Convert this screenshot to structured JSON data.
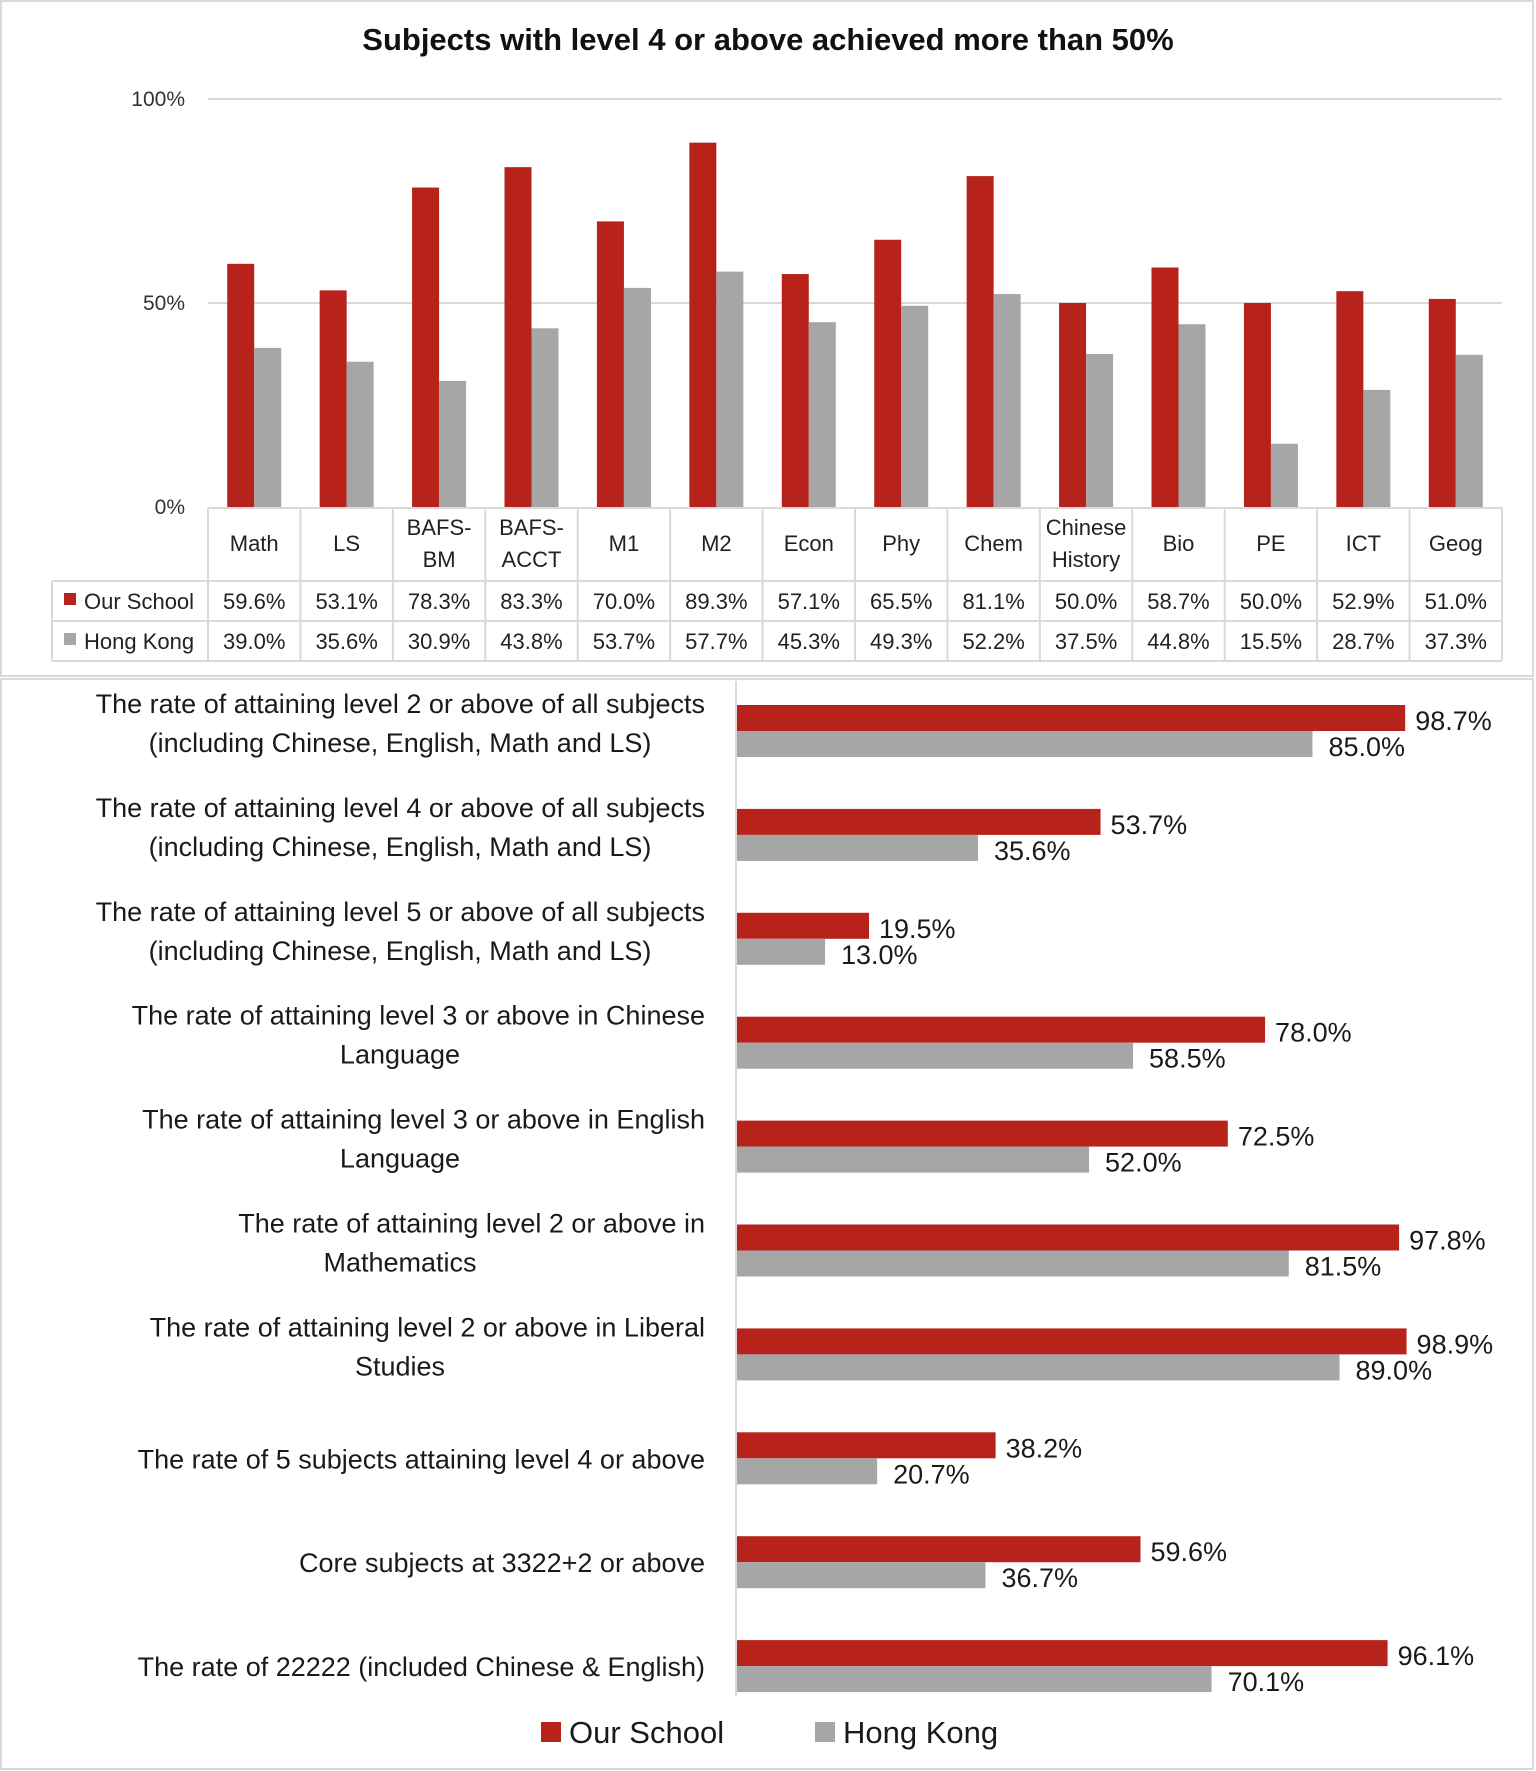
{
  "colors": {
    "our_school": "#B7231B",
    "hong_kong": "#A6A6A6",
    "grid": "#D9D9D9",
    "table_border": "#D9D9D9"
  },
  "chart_data": [
    {
      "type": "bar",
      "title": "Subjects with level 4 or above achieved more than 50%",
      "categories": [
        [
          "Math"
        ],
        [
          "LS"
        ],
        [
          "BAFS-",
          "BM"
        ],
        [
          "BAFS-",
          "ACCT"
        ],
        [
          "M1"
        ],
        [
          "M2"
        ],
        [
          "Econ"
        ],
        [
          "Phy"
        ],
        [
          "Chem"
        ],
        [
          "Chinese",
          "History"
        ],
        [
          "Bio"
        ],
        [
          "PE"
        ],
        [
          "ICT"
        ],
        [
          "Geog"
        ]
      ],
      "series": [
        {
          "name": "Our School",
          "values": [
            59.6,
            53.1,
            78.3,
            83.3,
            70.0,
            89.3,
            57.1,
            65.5,
            81.1,
            50.0,
            58.7,
            50.0,
            52.9,
            51.0
          ],
          "labels": [
            "59.6%",
            "53.1%",
            "78.3%",
            "83.3%",
            "70.0%",
            "89.3%",
            "57.1%",
            "65.5%",
            "81.1%",
            "50.0%",
            "58.7%",
            "50.0%",
            "52.9%",
            "51.0%"
          ]
        },
        {
          "name": "Hong Kong",
          "values": [
            39.0,
            35.6,
            30.9,
            43.8,
            53.7,
            57.7,
            45.3,
            49.3,
            52.2,
            37.5,
            44.8,
            15.5,
            28.7,
            37.3
          ],
          "labels": [
            "39.0%",
            "35.6%",
            "30.9%",
            "43.8%",
            "53.7%",
            "57.7%",
            "45.3%",
            "49.3%",
            "52.2%",
            "37.5%",
            "44.8%",
            "15.5%",
            "28.7%",
            "37.3%"
          ]
        }
      ],
      "yticks": [
        "0%",
        "50%",
        "100%"
      ],
      "ylim": [
        0,
        100
      ],
      "grid": true,
      "legend": "data-table"
    },
    {
      "type": "bar",
      "orientation": "horizontal",
      "categories": [
        [
          "The rate of attaining level 2 or above of all subjects",
          "(including Chinese, English, Math and LS)"
        ],
        [
          "The rate of attaining level 4 or above of all subjects",
          "(including Chinese, English, Math and LS)"
        ],
        [
          "The rate of attaining level 5 or above of all subjects",
          "(including Chinese, English, Math and LS)"
        ],
        [
          "The rate of attaining level 3 or above in Chinese",
          "Language"
        ],
        [
          "The rate of attaining level 3 or above in English",
          "Language"
        ],
        [
          "The rate of attaining level 2 or above in",
          "Mathematics"
        ],
        [
          "The rate of attaining level 2 or above in Liberal",
          "Studies"
        ],
        [
          "The rate of 5 subjects attaining level 4 or above"
        ],
        [
          "Core subjects at 3322+2 or above"
        ],
        [
          "The rate of 22222 (included Chinese & English)"
        ]
      ],
      "series": [
        {
          "name": "Our School",
          "values": [
            98.7,
            53.7,
            19.5,
            78.0,
            72.5,
            97.8,
            98.9,
            38.2,
            59.6,
            96.1
          ],
          "labels": [
            "98.7%",
            "53.7%",
            "19.5%",
            "78.0%",
            "72.5%",
            "97.8%",
            "98.9%",
            "38.2%",
            "59.6%",
            "96.1%"
          ]
        },
        {
          "name": "Hong Kong",
          "values": [
            85.0,
            35.6,
            13.0,
            58.5,
            52.0,
            81.5,
            89.0,
            20.7,
            36.7,
            70.1
          ],
          "labels": [
            "85.0%",
            "35.6%",
            "13.0%",
            "58.5%",
            "52.0%",
            "81.5%",
            "89.0%",
            "20.7%",
            "36.7%",
            "70.1%"
          ]
        }
      ],
      "xlim": [
        0,
        100
      ],
      "grid": false,
      "legend": "bottom"
    }
  ]
}
